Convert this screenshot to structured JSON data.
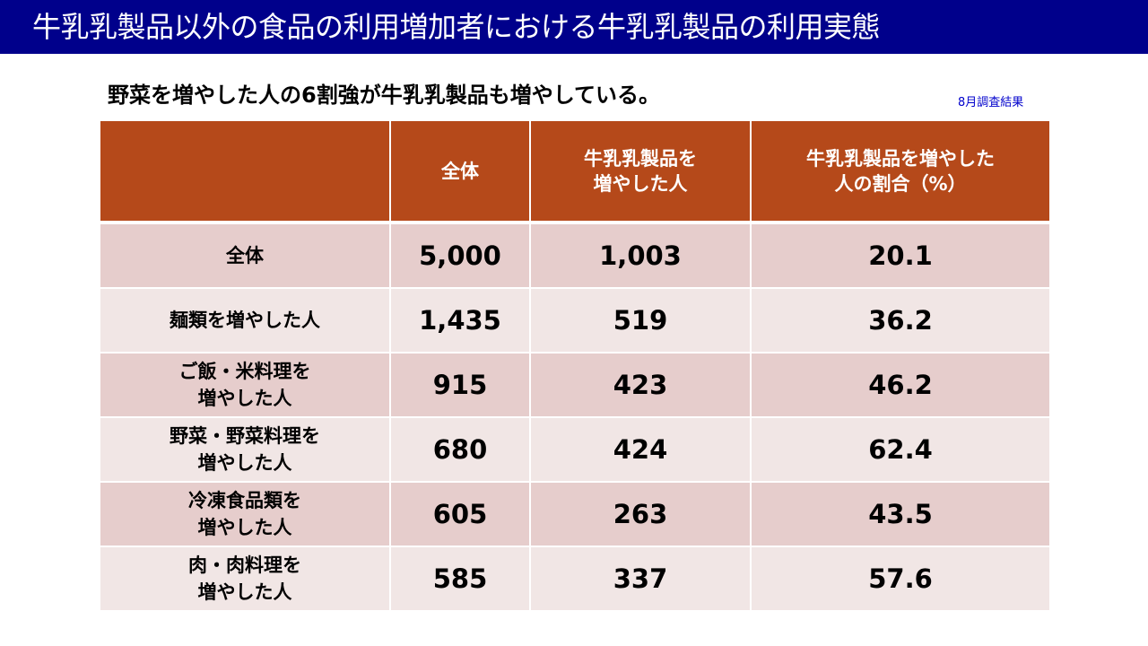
{
  "title": "牛乳乳製品以外の食品の利用増加者における牛乳乳製品の利用実態",
  "subtitle": "野菜を増やした人の6割強が牛乳乳製品も増やしている。",
  "note": "8月調査結果",
  "table": {
    "headers": [
      [
        ""
      ],
      [
        "全体"
      ],
      [
        "牛乳乳製品を",
        "増やした人"
      ],
      [
        "牛乳乳製品を増やした",
        "人の割合（%）"
      ]
    ],
    "rows": [
      {
        "label": [
          "全体"
        ],
        "total": "5,000",
        "increased": "1,003",
        "ratio": "20.1"
      },
      {
        "label": [
          "麺類を増やした人"
        ],
        "total": "1,435",
        "increased": "519",
        "ratio": "36.2"
      },
      {
        "label": [
          "ご飯・米料理を",
          "増やした人"
        ],
        "total": "915",
        "increased": "423",
        "ratio": "46.2"
      },
      {
        "label": [
          "野菜・野菜料理を",
          "増やした人"
        ],
        "total": "680",
        "increased": "424",
        "ratio": "62.4"
      },
      {
        "label": [
          "冷凍食品類を",
          "増やした人"
        ],
        "total": "605",
        "increased": "263",
        "ratio": "43.5"
      },
      {
        "label": [
          "肉・肉料理を",
          "増やした人"
        ],
        "total": "585",
        "increased": "337",
        "ratio": "57.6"
      }
    ]
  },
  "colors": {
    "title_bar": "#00008b",
    "header_bg": "#b5491a",
    "row_dark": "#e6cdcc",
    "row_light": "#f1e6e5",
    "highlight": "#0000e6",
    "note": "#0000cc"
  }
}
